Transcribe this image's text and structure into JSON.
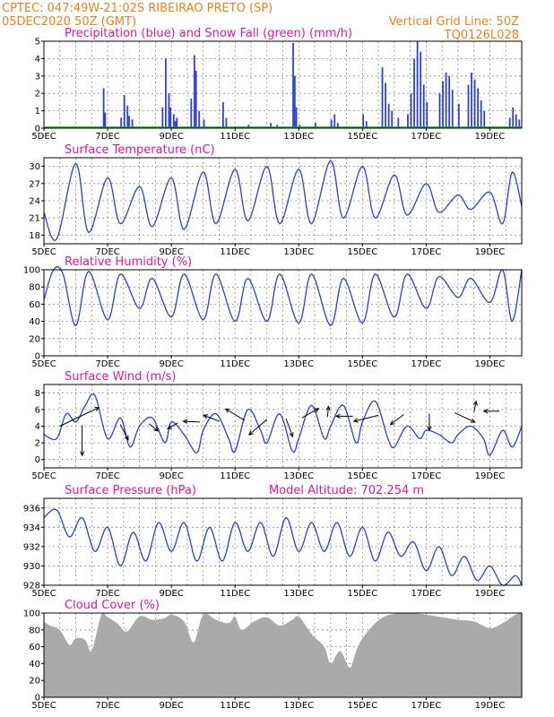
{
  "header": {
    "line1": "CPTEC:  047:49W-21:02S  RIBEIRAO PRETO (SP)",
    "line2": "05DEC2020 50Z (GMT)",
    "grid_note": "Vertical Grid Line: 50Z",
    "code": "TQ0126L028"
  },
  "colors": {
    "header": "#e8821c",
    "title": "#e0169a",
    "line": "#2b3fd6",
    "snow": "#1a9a1a",
    "cloud": "#aaaaaa"
  },
  "chart_data": [
    {
      "type": "bar",
      "title": "Precipitation (blue) and Snow Fall (green) (mm/h)",
      "ylim": [
        0,
        5
      ],
      "yticks": [
        0,
        1,
        2,
        3,
        4,
        5
      ],
      "xticks": [
        "5DEC",
        "7DEC",
        "9DEC",
        "11DEC",
        "13DEC",
        "15DEC",
        "17DEC",
        "19DEC"
      ],
      "series": [
        {
          "name": "Precipitation",
          "events": [
            [
              6.85,
              2.3
            ],
            [
              6.9,
              0.9
            ],
            [
              7.4,
              0.6
            ],
            [
              7.5,
              1.9
            ],
            [
              7.6,
              1.3
            ],
            [
              7.65,
              0.7
            ],
            [
              7.75,
              0.5
            ],
            [
              8.7,
              1.2
            ],
            [
              8.8,
              4.0
            ],
            [
              8.9,
              2.0
            ],
            [
              8.95,
              1.2
            ],
            [
              9.05,
              0.8
            ],
            [
              9.1,
              0.4
            ],
            [
              9.15,
              0.6
            ],
            [
              9.6,
              1.7
            ],
            [
              9.7,
              4.2
            ],
            [
              9.75,
              3.3
            ],
            [
              9.85,
              1.0
            ],
            [
              10.0,
              0.5
            ],
            [
              10.6,
              1.5
            ],
            [
              10.7,
              0.6
            ],
            [
              11.4,
              0.2
            ],
            [
              12.1,
              0.3
            ],
            [
              12.3,
              0.2
            ],
            [
              12.8,
              4.9
            ],
            [
              12.85,
              3.0
            ],
            [
              12.9,
              1.2
            ],
            [
              13.0,
              0.2
            ],
            [
              13.5,
              0.3
            ],
            [
              14.0,
              0.5
            ],
            [
              14.1,
              0.8
            ],
            [
              14.2,
              0.3
            ],
            [
              15.0,
              0.8
            ],
            [
              15.1,
              0.4
            ],
            [
              15.6,
              3.5
            ],
            [
              15.7,
              2.6
            ],
            [
              15.8,
              1.4
            ],
            [
              15.9,
              1.0
            ],
            [
              16.1,
              0.6
            ],
            [
              16.4,
              0.8
            ],
            [
              16.5,
              2.0
            ],
            [
              16.6,
              4.0
            ],
            [
              16.7,
              5.0
            ],
            [
              16.8,
              4.4
            ],
            [
              16.9,
              2.5
            ],
            [
              17.0,
              1.5
            ],
            [
              17.4,
              2.0
            ],
            [
              17.5,
              2.7
            ],
            [
              17.6,
              3.2
            ],
            [
              17.7,
              3.0
            ],
            [
              17.8,
              2.2
            ],
            [
              18.0,
              1.4
            ],
            [
              18.3,
              2.5
            ],
            [
              18.4,
              3.2
            ],
            [
              18.5,
              2.8
            ],
            [
              18.6,
              2.3
            ],
            [
              18.7,
              1.6
            ],
            [
              18.8,
              1.0
            ],
            [
              19.6,
              0.6
            ],
            [
              19.7,
              1.2
            ],
            [
              19.8,
              0.8
            ],
            [
              19.9,
              0.5
            ]
          ]
        },
        {
          "name": "Snow Fall",
          "values": [
            0
          ]
        }
      ]
    },
    {
      "type": "line",
      "title": "Surface Temperature (nC)",
      "ylim": [
        16.5,
        31.5
      ],
      "yticks": [
        18,
        21,
        24,
        27,
        30
      ],
      "xticks": [
        "5DEC",
        "7DEC",
        "9DEC",
        "11DEC",
        "13DEC",
        "15DEC",
        "17DEC",
        "19DEC"
      ],
      "daily": [
        [
          5.0,
          22.0
        ],
        [
          5.4,
          17.3
        ],
        [
          6.0,
          30.5
        ],
        [
          6.4,
          18.5
        ],
        [
          7.0,
          28.0
        ],
        [
          7.4,
          20.0
        ],
        [
          8.0,
          26.5
        ],
        [
          8.4,
          19.5
        ],
        [
          9.0,
          28.0
        ],
        [
          9.4,
          19.0
        ],
        [
          10.0,
          29.0
        ],
        [
          10.4,
          20.0
        ],
        [
          11.0,
          29.5
        ],
        [
          11.4,
          20.5
        ],
        [
          12.0,
          30.0
        ],
        [
          12.4,
          20.0
        ],
        [
          13.0,
          29.5
        ],
        [
          13.4,
          20.0
        ],
        [
          14.0,
          31.0
        ],
        [
          14.4,
          21.0
        ],
        [
          15.0,
          30.0
        ],
        [
          15.4,
          21.0
        ],
        [
          16.0,
          28.5
        ],
        [
          16.4,
          21.5
        ],
        [
          17.0,
          27.0
        ],
        [
          17.4,
          22.0
        ],
        [
          18.0,
          25.0
        ],
        [
          18.4,
          22.5
        ],
        [
          19.0,
          25.5
        ],
        [
          19.4,
          20.0
        ],
        [
          19.7,
          29.0
        ],
        [
          20.0,
          23.0
        ]
      ]
    },
    {
      "type": "line",
      "title": "Relative Humidity (%)",
      "ylim": [
        0,
        100
      ],
      "yticks": [
        0,
        20,
        40,
        60,
        80,
        100
      ],
      "xticks": [
        "5DEC",
        "7DEC",
        "9DEC",
        "11DEC",
        "13DEC",
        "15DEC",
        "17DEC",
        "19DEC"
      ],
      "daily": [
        [
          5.0,
          65.0
        ],
        [
          5.3,
          100.0
        ],
        [
          5.6,
          95.0
        ],
        [
          6.0,
          35.0
        ],
        [
          6.4,
          98.0
        ],
        [
          7.0,
          42.0
        ],
        [
          7.4,
          95.0
        ],
        [
          8.0,
          55.0
        ],
        [
          8.4,
          90.0
        ],
        [
          9.0,
          45.0
        ],
        [
          9.4,
          95.0
        ],
        [
          10.0,
          42.0
        ],
        [
          10.4,
          95.0
        ],
        [
          11.0,
          40.0
        ],
        [
          11.4,
          90.0
        ],
        [
          12.0,
          40.0
        ],
        [
          12.4,
          95.0
        ],
        [
          13.0,
          38.0
        ],
        [
          13.4,
          95.0
        ],
        [
          14.0,
          35.0
        ],
        [
          14.4,
          90.0
        ],
        [
          15.0,
          38.0
        ],
        [
          15.4,
          95.0
        ],
        [
          16.0,
          45.0
        ],
        [
          16.4,
          95.0
        ],
        [
          17.0,
          55.0
        ],
        [
          17.4,
          92.0
        ],
        [
          18.0,
          68.0
        ],
        [
          18.4,
          90.0
        ],
        [
          19.0,
          62.0
        ],
        [
          19.4,
          100.0
        ],
        [
          19.7,
          40.0
        ],
        [
          20.0,
          100.0
        ]
      ]
    },
    {
      "type": "line",
      "title": "Surface Wind (m/s)",
      "ylim": [
        -1,
        9
      ],
      "yticks": [
        0,
        2,
        4,
        6,
        8
      ],
      "xticks": [
        "5DEC",
        "7DEC",
        "9DEC",
        "11DEC",
        "13DEC",
        "15DEC",
        "17DEC",
        "19DEC"
      ],
      "daily": [
        [
          5.0,
          3.0
        ],
        [
          5.4,
          2.5
        ],
        [
          5.7,
          5.5
        ],
        [
          6.0,
          4.5
        ],
        [
          6.3,
          6.5
        ],
        [
          6.6,
          7.7
        ],
        [
          7.0,
          2.5
        ],
        [
          7.4,
          5.0
        ],
        [
          7.7,
          1.5
        ],
        [
          8.0,
          4.0
        ],
        [
          8.4,
          5.0
        ],
        [
          8.8,
          2.0
        ],
        [
          9.0,
          4.5
        ],
        [
          9.4,
          3.0
        ],
        [
          9.8,
          0.8
        ],
        [
          10.0,
          3.5
        ],
        [
          10.4,
          5.5
        ],
        [
          10.8,
          2.5
        ],
        [
          11.0,
          1.0
        ],
        [
          11.4,
          6.0
        ],
        [
          11.8,
          3.5
        ],
        [
          12.0,
          2.0
        ],
        [
          12.4,
          5.5
        ],
        [
          12.8,
          1.0
        ],
        [
          13.0,
          2.5
        ],
        [
          13.4,
          6.5
        ],
        [
          13.8,
          2.5
        ],
        [
          14.0,
          4.0
        ],
        [
          14.4,
          6.5
        ],
        [
          14.8,
          2.0
        ],
        [
          15.0,
          4.5
        ],
        [
          15.4,
          7.0
        ],
        [
          15.8,
          2.5
        ],
        [
          16.0,
          1.5
        ],
        [
          16.4,
          4.0
        ],
        [
          16.8,
          2.5
        ],
        [
          17.0,
          3.5
        ],
        [
          17.4,
          3.0
        ],
        [
          17.8,
          2.0
        ],
        [
          18.0,
          3.0
        ],
        [
          18.4,
          4.0
        ],
        [
          18.8,
          2.5
        ],
        [
          19.0,
          0.5
        ],
        [
          19.4,
          3.5
        ],
        [
          19.7,
          1.5
        ],
        [
          20.0,
          4.0
        ]
      ],
      "vectors": [
        [
          5.5,
          4.0,
          3.5,
          2.8,
          0.0
        ],
        [
          6.2,
          4.1,
          -0.0,
          -4.5,
          0.0
        ],
        [
          7.4,
          4.2,
          0.7,
          -2.3,
          0.0
        ],
        [
          8.3,
          4.3,
          0.8,
          -1.1,
          0.0
        ],
        [
          9.2,
          4.4,
          -0.9,
          -0.9,
          0.0
        ],
        [
          9.9,
          4.5,
          -1.5,
          0.1,
          0.0
        ],
        [
          10.5,
          4.6,
          -1.4,
          0.9,
          0.0
        ],
        [
          11.3,
          4.7,
          -1.7,
          1.7,
          0.0
        ],
        [
          12.0,
          4.8,
          -1.6,
          -2.3,
          0.0
        ],
        [
          12.6,
          4.9,
          0.6,
          -2.7,
          0.0
        ],
        [
          13.1,
          5.0,
          1.5,
          1.4,
          0.0
        ],
        [
          13.9,
          5.1,
          0.1,
          1.6,
          0.0
        ],
        [
          14.7,
          5.2,
          -1.5,
          -0.0,
          0.0
        ],
        [
          15.5,
          5.3,
          -2.2,
          -0.9,
          0.0
        ],
        [
          16.3,
          5.4,
          -1.2,
          -1.5,
          0.0
        ],
        [
          17.1,
          5.5,
          -0.0,
          -2.5,
          0.0
        ],
        [
          17.9,
          5.6,
          1.8,
          -1.4,
          0.0
        ],
        [
          18.5,
          5.7,
          0.2,
          1.6,
          0.0
        ],
        [
          19.3,
          5.8,
          -1.4,
          0.0,
          0.0
        ]
      ]
    },
    {
      "type": "line",
      "title": "Surface Pressure (hPa)",
      "subtitle": "Model Altitude: 702.254  m",
      "ylim": [
        928,
        937
      ],
      "yticks": [
        928,
        930,
        932,
        934,
        936
      ],
      "xticks": [
        "5DEC",
        "7DEC",
        "9DEC",
        "11DEC",
        "13DEC",
        "15DEC",
        "17DEC",
        "19DEC"
      ],
      "daily": [
        [
          5.0,
          935.0
        ],
        [
          5.4,
          935.8
        ],
        [
          5.8,
          933.0
        ],
        [
          6.2,
          935.0
        ],
        [
          6.6,
          931.5
        ],
        [
          7.0,
          934.0
        ],
        [
          7.4,
          930.0
        ],
        [
          7.8,
          933.5
        ],
        [
          8.2,
          930.5
        ],
        [
          8.6,
          934.5
        ],
        [
          9.0,
          931.5
        ],
        [
          9.4,
          934.5
        ],
        [
          9.8,
          930.5
        ],
        [
          10.2,
          934.0
        ],
        [
          10.6,
          930.5
        ],
        [
          11.0,
          934.5
        ],
        [
          11.4,
          931.5
        ],
        [
          11.8,
          934.5
        ],
        [
          12.2,
          931.0
        ],
        [
          12.6,
          935.0
        ],
        [
          13.0,
          931.5
        ],
        [
          13.4,
          934.5
        ],
        [
          13.8,
          931.5
        ],
        [
          14.2,
          934.5
        ],
        [
          14.6,
          931.0
        ],
        [
          15.0,
          934.0
        ],
        [
          15.4,
          930.5
        ],
        [
          15.8,
          933.5
        ],
        [
          16.2,
          931.0
        ],
        [
          16.6,
          932.5
        ],
        [
          17.0,
          929.5
        ],
        [
          17.4,
          932.0
        ],
        [
          17.8,
          929.0
        ],
        [
          18.2,
          931.0
        ],
        [
          18.6,
          928.5
        ],
        [
          19.0,
          930.0
        ],
        [
          19.4,
          928.0
        ],
        [
          19.8,
          929.0
        ],
        [
          20.0,
          928.0
        ]
      ]
    },
    {
      "type": "area",
      "title": "Cloud Cover (%)",
      "ylim": [
        0,
        100
      ],
      "yticks": [
        0,
        20,
        40,
        60,
        80,
        100
      ],
      "xticks": [
        "5DEC",
        "7DEC",
        "9DEC",
        "11DEC",
        "13DEC",
        "15DEC",
        "17DEC",
        "19DEC"
      ],
      "daily": [
        [
          5.0,
          90.0
        ],
        [
          5.2,
          85.0
        ],
        [
          5.5,
          80.0
        ],
        [
          5.8,
          62.0
        ],
        [
          6.0,
          70.0
        ],
        [
          6.3,
          68.0
        ],
        [
          6.5,
          55.0
        ],
        [
          6.8,
          98.0
        ],
        [
          7.0,
          95.0
        ],
        [
          7.3,
          88.0
        ],
        [
          7.6,
          78.0
        ],
        [
          8.0,
          96.0
        ],
        [
          8.4,
          92.0
        ],
        [
          8.8,
          94.0
        ],
        [
          9.0,
          98.0
        ],
        [
          9.4,
          90.0
        ],
        [
          9.7,
          65.0
        ],
        [
          10.0,
          98.0
        ],
        [
          10.4,
          92.0
        ],
        [
          10.8,
          88.0
        ],
        [
          11.0,
          96.0
        ],
        [
          11.2,
          80.0
        ],
        [
          11.6,
          90.0
        ],
        [
          12.0,
          95.0
        ],
        [
          12.4,
          85.0
        ],
        [
          12.8,
          92.0
        ],
        [
          13.0,
          96.0
        ],
        [
          13.4,
          75.0
        ],
        [
          13.8,
          60.0
        ],
        [
          14.0,
          40.0
        ],
        [
          14.3,
          55.0
        ],
        [
          14.6,
          35.0
        ],
        [
          14.8,
          55.0
        ],
        [
          15.0,
          70.0
        ],
        [
          15.4,
          88.0
        ],
        [
          15.7,
          96.0
        ],
        [
          16.0,
          99.0
        ],
        [
          16.5,
          100.0
        ],
        [
          17.0,
          98.0
        ],
        [
          17.5,
          95.0
        ],
        [
          18.0,
          92.0
        ],
        [
          18.5,
          90.0
        ],
        [
          19.0,
          82.0
        ],
        [
          19.4,
          88.0
        ],
        [
          19.8,
          98.0
        ],
        [
          20.0,
          100.0
        ]
      ]
    }
  ]
}
